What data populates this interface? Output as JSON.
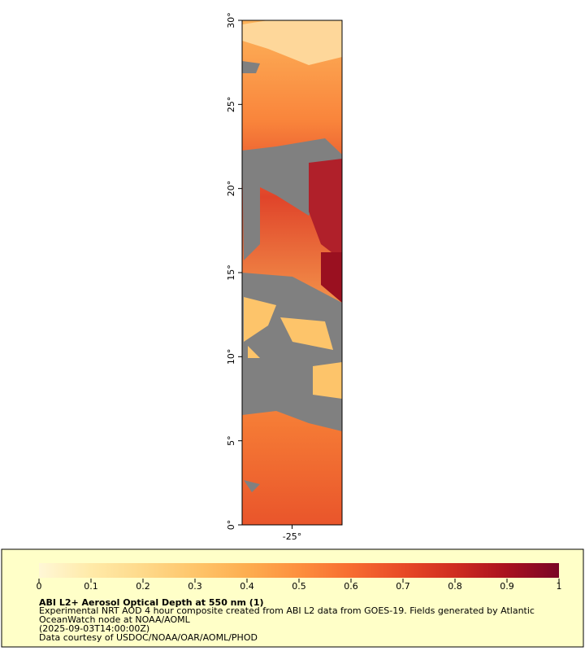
{
  "map": {
    "lat_range": [
      0,
      30
    ],
    "lon_range": [
      -28,
      -22
    ],
    "y_ticks": [
      {
        "value": 0,
        "label": "0°"
      },
      {
        "value": 5,
        "label": "5°"
      },
      {
        "value": 10,
        "label": "10°"
      },
      {
        "value": 15,
        "label": "15°"
      },
      {
        "value": 20,
        "label": "20°"
      },
      {
        "value": 25,
        "label": "25°"
      },
      {
        "value": 30,
        "label": "30°"
      }
    ],
    "x_ticks": [
      {
        "value": -25,
        "label": "-25°"
      }
    ]
  },
  "colorbar": {
    "range": [
      0,
      1
    ],
    "ticks": [
      0,
      0.1,
      0.2,
      0.3,
      0.4,
      0.5,
      0.6,
      0.7,
      0.8,
      0.9,
      1
    ],
    "colors": [
      "#fff7d6",
      "#ffeaa8",
      "#fed98a",
      "#fec56a",
      "#fdad50",
      "#fd8f3e",
      "#f76c31",
      "#e84a27",
      "#cf2c20",
      "#a9111f",
      "#7a0626"
    ]
  },
  "legend": {
    "title": "ABI L2+ Aerosol Optical Depth at 550 nm (1)",
    "lines": [
      "Experimental NRT AOD 4 hour composite created from ABI L2 data from GOES-19. Fields generated by Atlantic",
      "OceanWatch node at NOAA/AOML",
      "(2025-09-03T14:00:00Z)",
      "Data courtesy of USDOC/NOAA/OAR/AOML/PHOD"
    ]
  }
}
